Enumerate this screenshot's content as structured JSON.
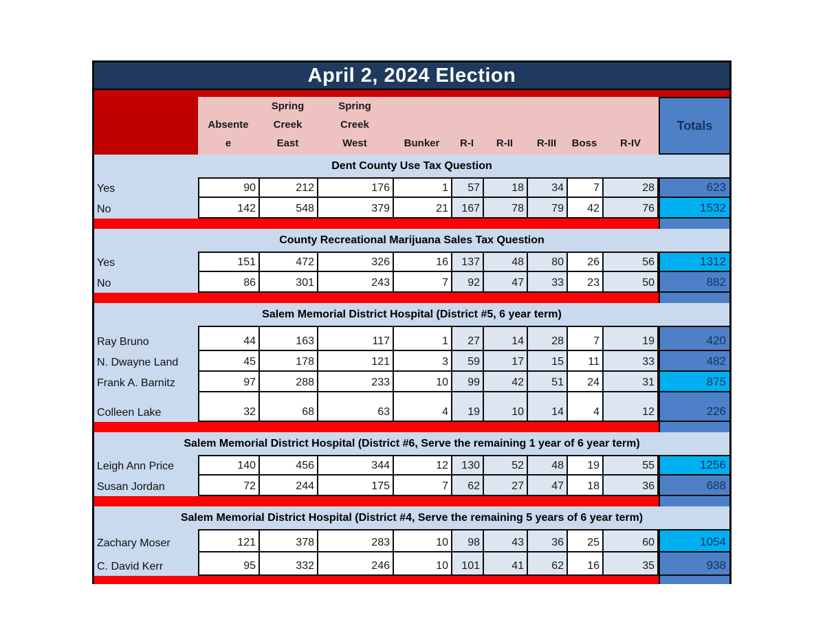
{
  "title": "April 2, 2024 Election",
  "totals_label": "Totals",
  "column_headers": [
    {
      "name": "absentee",
      "lines": [
        "Absente",
        "e"
      ]
    },
    {
      "name": "spring-creek-east",
      "lines": [
        "Spring",
        "Creek",
        "East"
      ]
    },
    {
      "name": "spring-creek-west",
      "lines": [
        "Spring",
        "Creek",
        "West"
      ]
    },
    {
      "name": "bunker",
      "lines": [
        "Bunker"
      ]
    },
    {
      "name": "r-i",
      "lines": [
        "R-I"
      ]
    },
    {
      "name": "r-ii",
      "lines": [
        "R-II"
      ]
    },
    {
      "name": "r-iii",
      "lines": [
        "R-III"
      ]
    },
    {
      "name": "boss",
      "lines": [
        "Boss"
      ]
    },
    {
      "name": "r-iv",
      "lines": [
        "R-IV"
      ]
    }
  ],
  "sections": [
    {
      "title": "Dent County Use Tax Question",
      "rows": [
        {
          "label": "Yes",
          "values": [
            90,
            212,
            176,
            1,
            57,
            18,
            34,
            7,
            28
          ],
          "total": 623,
          "winner": false
        },
        {
          "label": "No",
          "values": [
            142,
            548,
            379,
            21,
            167,
            78,
            79,
            42,
            76
          ],
          "total": 1532,
          "winner": true
        }
      ]
    },
    {
      "title": "County Recreational Marijuana Sales Tax Question",
      "rows": [
        {
          "label": "Yes",
          "values": [
            151,
            472,
            326,
            16,
            137,
            48,
            80,
            26,
            56
          ],
          "total": 1312,
          "winner": true
        },
        {
          "label": "No",
          "values": [
            86,
            301,
            243,
            7,
            92,
            47,
            33,
            23,
            50
          ],
          "total": 882,
          "winner": false
        }
      ]
    },
    {
      "title": "Salem Memorial District Hospital (District #5, 6 year term)",
      "rows": [
        {
          "label": "Ray Bruno",
          "values": [
            44,
            163,
            117,
            1,
            27,
            14,
            28,
            7,
            19
          ],
          "total": 420,
          "winner": false
        },
        {
          "label": "N. Dwayne Land",
          "values": [
            45,
            178,
            121,
            3,
            59,
            17,
            15,
            11,
            33
          ],
          "total": 482,
          "winner": false
        },
        {
          "label": "Frank A. Barnitz",
          "values": [
            97,
            288,
            233,
            10,
            99,
            42,
            51,
            24,
            31
          ],
          "total": 875,
          "winner": true
        },
        {
          "label": "Colleen Lake",
          "values": [
            32,
            68,
            63,
            4,
            19,
            10,
            14,
            4,
            12
          ],
          "total": 226,
          "winner": false
        }
      ]
    },
    {
      "title": "Salem Memorial District Hospital (District #6, Serve the remaining 1 year of 6 year term)",
      "rows": [
        {
          "label": "Leigh Ann Price",
          "values": [
            140,
            456,
            344,
            12,
            130,
            52,
            48,
            19,
            55
          ],
          "total": 1256,
          "winner": true
        },
        {
          "label": "Susan Jordan",
          "values": [
            72,
            244,
            175,
            7,
            62,
            27,
            47,
            18,
            36
          ],
          "total": 688,
          "winner": false
        }
      ]
    },
    {
      "title": "Salem Memorial District Hospital (District #4, Serve the remaining 5 years of 6 year term)",
      "rows": [
        {
          "label": "Zachary Moser",
          "values": [
            121,
            378,
            283,
            10,
            98,
            43,
            36,
            25,
            60
          ],
          "total": 1054,
          "winner": true
        },
        {
          "label": "C. David Kerr",
          "values": [
            95,
            332,
            246,
            10,
            101,
            41,
            62,
            16,
            35
          ],
          "total": 938,
          "winner": false
        }
      ]
    }
  ],
  "tinted_column_indexes": [
    4,
    5,
    6,
    8
  ],
  "colors": {
    "navy": "#1F3A5E",
    "title_text": "#FFFFFF",
    "crimson": "#C80108",
    "dark_red": "#C00000",
    "pink": "#EFC2C2",
    "light_blue": "#C9D9EE",
    "tint": "#DDE5F1",
    "cornflower": "#4E80C8",
    "cyan": "#00B0F0",
    "bright_red": "#FA0505",
    "totals_text": "#16335E"
  }
}
